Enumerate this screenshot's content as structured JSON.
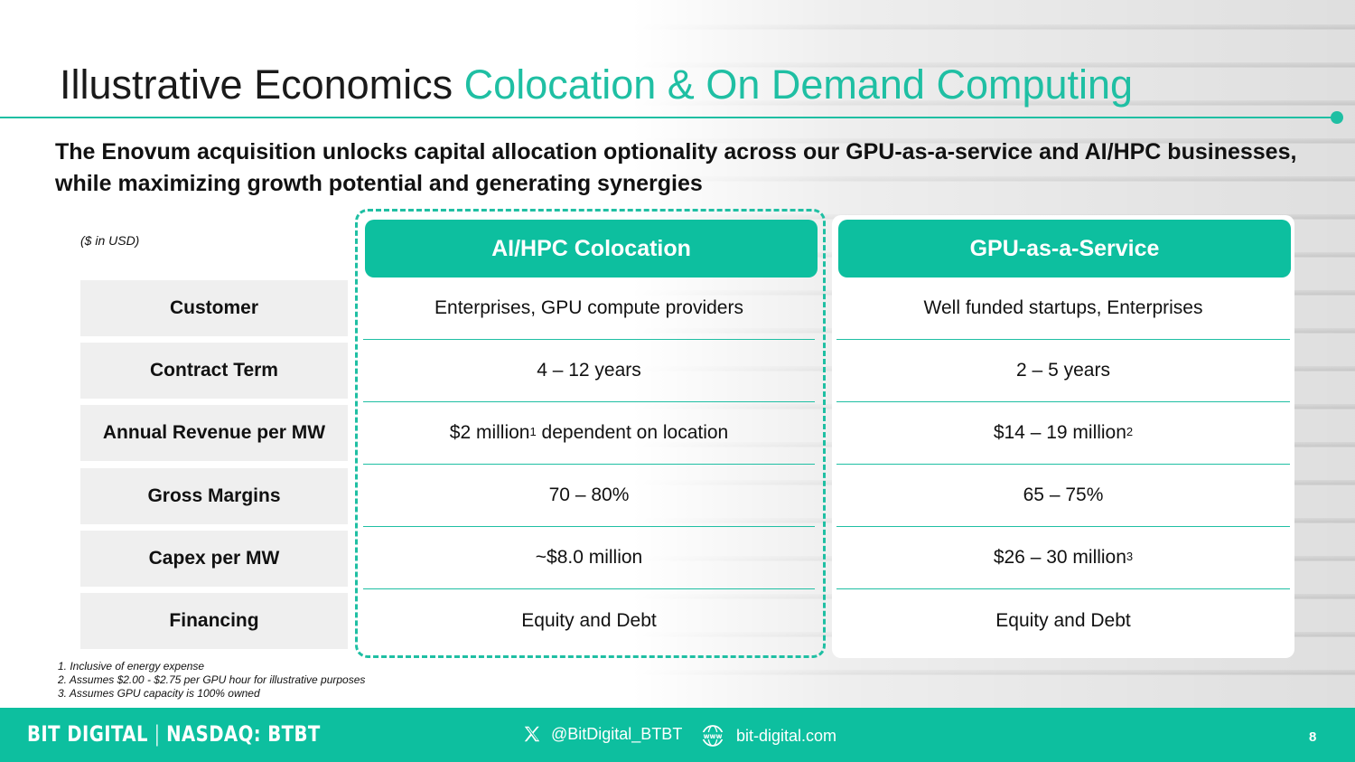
{
  "title": {
    "part1": "Illustrative Economics",
    "part2": "Colocation & On Demand Computing"
  },
  "subtitle": "The Enovum acquisition unlocks capital allocation optionality across our GPU-as-a-service and AI/HPC businesses, while maximizing growth potential and generating synergies",
  "units_note": "($ in USD)",
  "columns": {
    "colocation": "AI/HPC Colocation",
    "gpuaas": "GPU-as-a-Service"
  },
  "rows": [
    {
      "label": "Customer",
      "colocation": "Enterprises, GPU compute providers",
      "gpuaas": "Well funded startups, Enterprises"
    },
    {
      "label": "Contract Term",
      "colocation": "4 – 12 years",
      "gpuaas": "2 – 5 years"
    },
    {
      "label": "Annual Revenue per MW",
      "colocation": "$2 million",
      "colocation_sup": "1",
      "colocation_suffix": " dependent on location",
      "gpuaas": "$14 – 19 million",
      "gpuaas_sup": "2"
    },
    {
      "label": "Gross Margins",
      "colocation": "70 – 80%",
      "gpuaas": "65 – 75%"
    },
    {
      "label": "Capex per MW",
      "colocation": "~$8.0 million",
      "gpuaas": "$26 – 30 million",
      "gpuaas_sup": "3"
    },
    {
      "label": "Financing",
      "colocation": "Equity and Debt",
      "gpuaas": "Equity and Debt"
    }
  ],
  "footnotes": [
    "1. Inclusive of energy expense",
    "2. Assumes $2.00 - $2.75 per GPU hour for illustrative purposes",
    "3. Assumes GPU capacity is 100% owned"
  ],
  "footer": {
    "brand_name": "BIT DIGITAL",
    "brand_divider": "|",
    "brand_ticker": "NASDAQ: BTBT",
    "twitter_handle": "@BitDigital_BTBT",
    "website": "bit-digital.com",
    "page_number": "8"
  },
  "icons": {
    "twitter": "x-logo-icon",
    "web": "www-globe-icon"
  },
  "colors": {
    "accent": "#1fbfa3",
    "header_fill": "#0dbf9f",
    "row_label_bg": "#efefef"
  }
}
